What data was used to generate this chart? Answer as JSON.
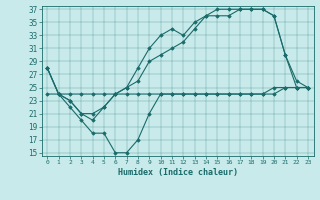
{
  "xlabel": "Humidex (Indice chaleur)",
  "background_color": "#c8eaea",
  "line_color": "#1a6b6b",
  "xlim": [
    -0.5,
    23.5
  ],
  "ylim": [
    14.5,
    37.5
  ],
  "yticks": [
    15,
    17,
    19,
    21,
    23,
    25,
    27,
    29,
    31,
    33,
    35,
    37
  ],
  "xticks": [
    0,
    1,
    2,
    3,
    4,
    5,
    6,
    7,
    8,
    9,
    10,
    11,
    12,
    13,
    14,
    15,
    16,
    17,
    18,
    19,
    20,
    21,
    22,
    23
  ],
  "series": [
    {
      "x": [
        0,
        1,
        2,
        3,
        4,
        5,
        6,
        7,
        8,
        9,
        10,
        11,
        12,
        13,
        14,
        15,
        16,
        17,
        18,
        19,
        20,
        21,
        22,
        23
      ],
      "y": [
        28,
        24,
        23,
        21,
        20,
        22,
        24,
        25,
        26,
        29,
        30,
        31,
        32,
        34,
        36,
        36,
        36,
        37,
        37,
        37,
        36,
        30,
        26,
        25
      ]
    },
    {
      "x": [
        0,
        1,
        2,
        3,
        4,
        5,
        6,
        7,
        8,
        9,
        10,
        11,
        12,
        13,
        14,
        15,
        16,
        17,
        18,
        19,
        20,
        21,
        22,
        23
      ],
      "y": [
        28,
        24,
        23,
        21,
        21,
        22,
        24,
        25,
        28,
        31,
        33,
        34,
        33,
        35,
        36,
        37,
        37,
        37,
        37,
        37,
        36,
        30,
        25,
        25
      ]
    },
    {
      "x": [
        0,
        1,
        2,
        3,
        4,
        5,
        6,
        7,
        8,
        9,
        10,
        11,
        12,
        13,
        14,
        15,
        16,
        17,
        18,
        19,
        20,
        21,
        22,
        23
      ],
      "y": [
        28,
        24,
        22,
        20,
        18,
        18,
        15,
        15,
        17,
        21,
        24,
        24,
        24,
        24,
        24,
        24,
        24,
        24,
        24,
        24,
        24,
        25,
        25,
        25
      ]
    },
    {
      "x": [
        0,
        1,
        2,
        3,
        4,
        5,
        6,
        7,
        8,
        9,
        10,
        11,
        12,
        13,
        14,
        15,
        16,
        17,
        18,
        19,
        20,
        21,
        22,
        23
      ],
      "y": [
        24,
        24,
        24,
        24,
        24,
        24,
        24,
        24,
        24,
        24,
        24,
        24,
        24,
        24,
        24,
        24,
        24,
        24,
        24,
        24,
        25,
        25,
        25,
        25
      ]
    }
  ]
}
